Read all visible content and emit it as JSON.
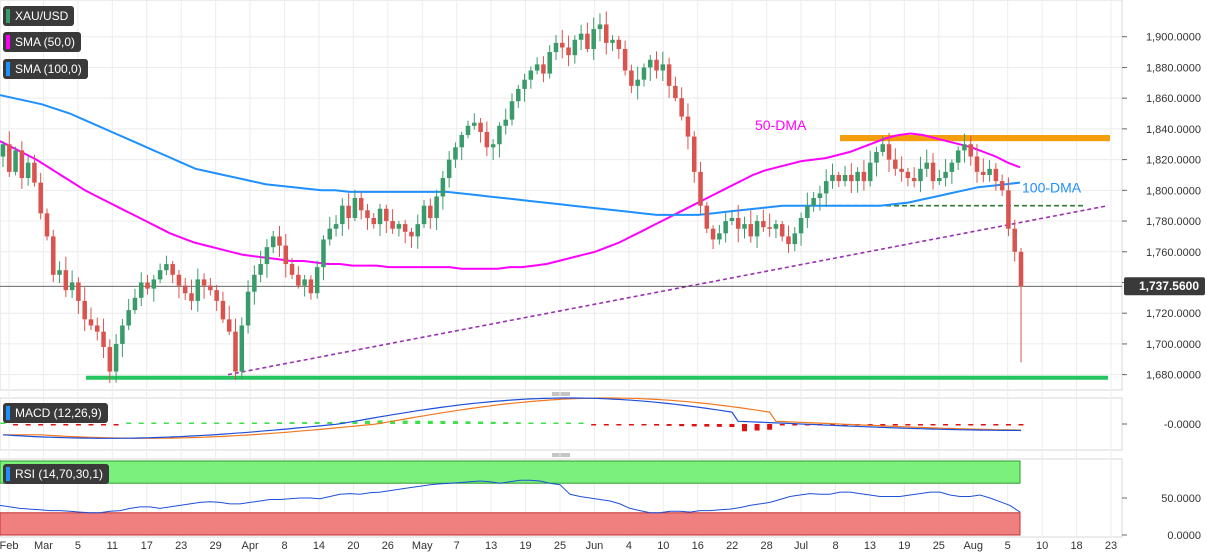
{
  "legend": {
    "symbol": "XAU/USD",
    "sma50": "SMA (50,0)",
    "sma100": "SMA (100,0)",
    "macd": "MACD (12,26,9)",
    "rsi": "RSI (14,70,30,1)"
  },
  "annotations": {
    "dma50": "50-DMA",
    "dma100": "100-DMA",
    "last_price": "1,737.5600"
  },
  "colors": {
    "up": "#3a9b6a",
    "down": "#d9534f",
    "sma50": "#ff00ff",
    "sma100": "#1e90ff",
    "support": "#22c55e",
    "resistance": "#f59e0b",
    "trendline": "#9b30b0",
    "macd_pos": "#3de04a",
    "macd_neg": "#e01010",
    "rsi_over": "#7cf07c",
    "rsi_under": "#f08080"
  },
  "chart_data": [
    {
      "type": "candlestick",
      "ylim": [
        1670,
        1920
      ],
      "price_ticks": [
        "1,900.0000",
        "1,880.0000",
        "1,860.0000",
        "1,840.0000",
        "1,820.0000",
        "1,800.0000",
        "1,780.0000",
        "1,760.0000",
        "1,740.0000",
        "1,720.0000",
        "1,700.0000",
        "1,680.0000"
      ],
      "date_ticks": [
        "Feb",
        "Mar",
        "5",
        "11",
        "17",
        "23",
        "29",
        "Apr",
        "8",
        "14",
        "20",
        "26",
        "May",
        "7",
        "13",
        "19",
        "25",
        "Jun",
        "4",
        "10",
        "16",
        "22",
        "28",
        "Jul",
        "8",
        "13",
        "19",
        "25",
        "Aug",
        "5",
        "10",
        "18",
        "23"
      ],
      "closes": [
        1830,
        1812,
        1826,
        1808,
        1818,
        1805,
        1785,
        1770,
        1745,
        1748,
        1735,
        1740,
        1728,
        1716,
        1712,
        1708,
        1698,
        1682,
        1700,
        1712,
        1722,
        1730,
        1740,
        1736,
        1742,
        1748,
        1752,
        1745,
        1738,
        1733,
        1728,
        1742,
        1738,
        1735,
        1728,
        1716,
        1708,
        1682,
        1712,
        1734,
        1745,
        1752,
        1763,
        1770,
        1764,
        1752,
        1745,
        1738,
        1742,
        1733,
        1750,
        1768,
        1775,
        1778,
        1790,
        1782,
        1795,
        1787,
        1782,
        1778,
        1788,
        1780,
        1775,
        1778,
        1773,
        1770,
        1778,
        1790,
        1782,
        1796,
        1808,
        1820,
        1828,
        1836,
        1842,
        1844,
        1838,
        1828,
        1830,
        1842,
        1846,
        1858,
        1866,
        1872,
        1878,
        1882,
        1876,
        1890,
        1896,
        1893,
        1888,
        1898,
        1902,
        1892,
        1905,
        1908,
        1896,
        1898,
        1892,
        1878,
        1868,
        1872,
        1880,
        1885,
        1878,
        1882,
        1868,
        1860,
        1848,
        1835,
        1812,
        1790,
        1775,
        1768,
        1772,
        1780,
        1782,
        1775,
        1778,
        1770,
        1780,
        1776,
        1775,
        1778,
        1770,
        1765,
        1772,
        1782,
        1790,
        1795,
        1798,
        1806,
        1810,
        1806,
        1810,
        1806,
        1812,
        1806,
        1818,
        1825,
        1830,
        1820,
        1814,
        1812,
        1808,
        1806,
        1814,
        1818,
        1806,
        1808,
        1812,
        1818,
        1826,
        1830,
        1822,
        1812,
        1810,
        1814,
        1806,
        1800,
        1775,
        1760,
        1737.56
      ],
      "last": 1737.56,
      "low_of_last": 1688,
      "sma50": [
        1832,
        1828,
        1824,
        1820,
        1815,
        1810,
        1805,
        1800,
        1796,
        1792,
        1788,
        1784,
        1780,
        1776,
        1772,
        1769,
        1766,
        1764,
        1762,
        1760,
        1758,
        1757,
        1756,
        1755,
        1754,
        1754,
        1753,
        1752,
        1752,
        1751,
        1751,
        1751,
        1750,
        1750,
        1750,
        1750,
        1750,
        1750,
        1749,
        1749,
        1749,
        1749,
        1750,
        1750,
        1751,
        1752,
        1754,
        1756,
        1758,
        1760,
        1763,
        1766,
        1770,
        1774,
        1778,
        1782,
        1786,
        1790,
        1794,
        1798,
        1802,
        1806,
        1810,
        1813,
        1815,
        1817,
        1819,
        1820,
        1821,
        1823,
        1825,
        1828,
        1831,
        1834,
        1836,
        1837,
        1836,
        1834,
        1832,
        1830,
        1828,
        1825,
        1822,
        1818,
        1815
      ],
      "sma100": [
        1862,
        1860,
        1858,
        1856,
        1853,
        1850,
        1846,
        1842,
        1838,
        1834,
        1830,
        1826,
        1822,
        1818,
        1814,
        1812,
        1810,
        1808,
        1806,
        1804,
        1803,
        1802,
        1801,
        1800,
        1800,
        1799,
        1799,
        1799,
        1799,
        1799,
        1799,
        1799,
        1799,
        1798,
        1797,
        1796,
        1795,
        1794,
        1793,
        1792,
        1791,
        1790,
        1789,
        1788,
        1787,
        1786,
        1785,
        1784,
        1784,
        1784,
        1784,
        1785,
        1786,
        1787,
        1788,
        1789,
        1790,
        1790,
        1790,
        1790,
        1790,
        1790,
        1790,
        1790,
        1791,
        1792,
        1794,
        1796,
        1798,
        1800,
        1802,
        1803,
        1804,
        1805
      ],
      "support_level": 1678,
      "resistance_zone": [
        1832,
        1836
      ],
      "horizontal_dashed": 1790,
      "trendline": [
        [
          1680,
          1790
        ]
      ]
    },
    {
      "type": "macd",
      "tick": "-0.0000"
    },
    {
      "type": "rsi",
      "ticks": [
        "50.0000",
        "0.0000"
      ],
      "overbought": 70,
      "oversold": 30,
      "values": [
        40,
        38,
        36,
        35,
        34,
        33,
        33,
        32,
        31,
        30,
        30,
        32,
        33,
        36,
        38,
        38,
        36,
        38,
        40,
        42,
        44,
        45,
        44,
        42,
        42,
        44,
        46,
        48,
        48,
        49,
        50,
        50,
        49,
        52,
        55,
        56,
        55,
        57,
        58,
        60,
        62,
        64,
        66,
        68,
        69,
        70,
        71,
        72,
        73,
        72,
        70,
        72,
        74,
        74,
        73,
        70,
        68,
        55,
        52,
        50,
        48,
        46,
        42,
        36,
        33,
        30,
        30,
        32,
        32,
        31,
        33,
        33,
        34,
        35,
        37,
        40,
        42,
        44,
        48,
        52,
        54,
        56,
        55,
        55,
        58,
        58,
        56,
        54,
        52,
        52,
        52,
        54,
        56,
        58,
        58,
        54,
        52,
        52,
        54,
        50,
        45,
        40,
        31
      ]
    }
  ]
}
